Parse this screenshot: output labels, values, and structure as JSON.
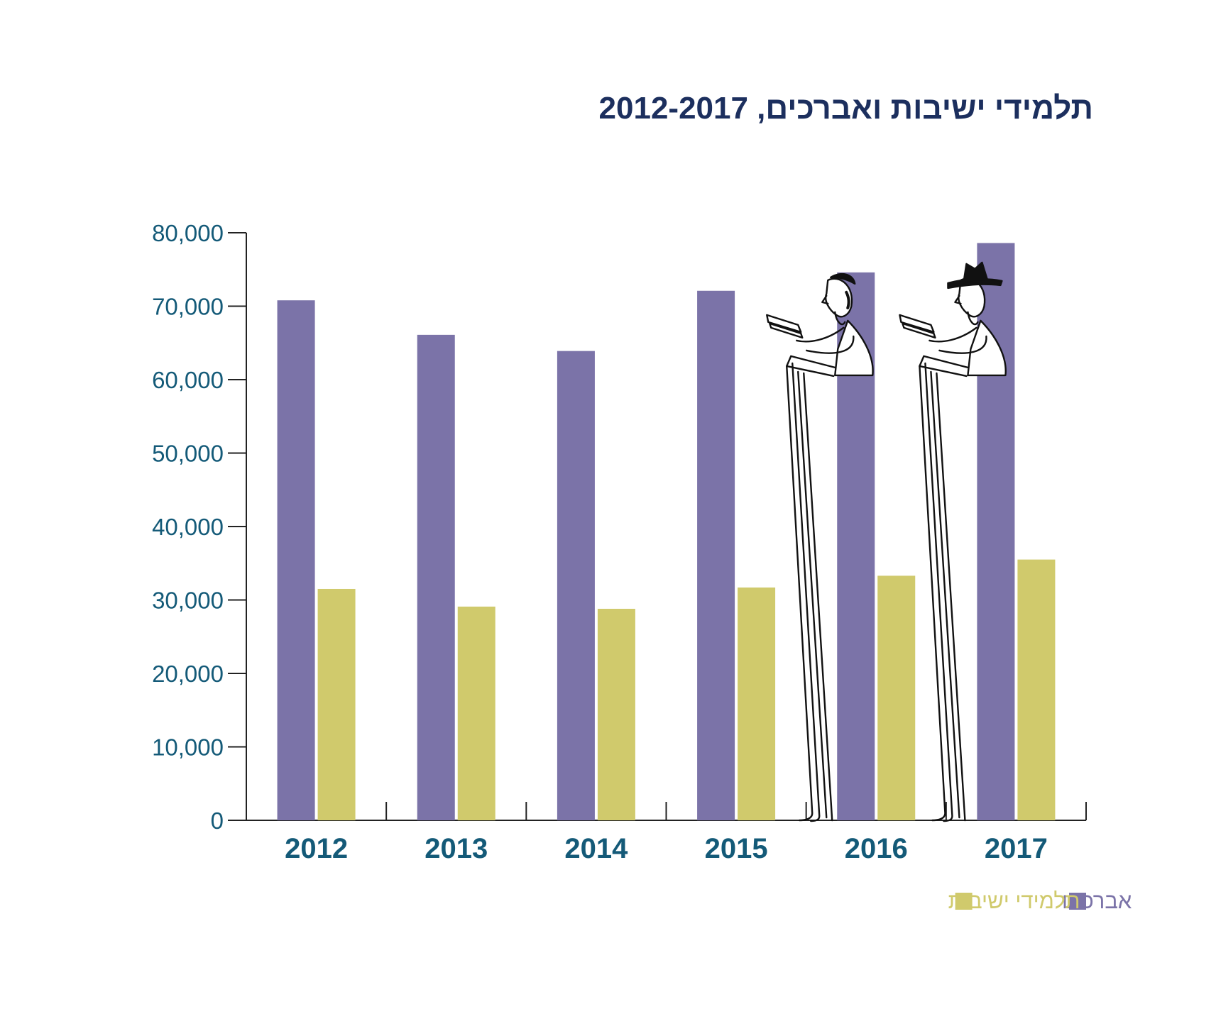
{
  "colors": {
    "title": "#1c2f5e",
    "axis_text": "#145a78",
    "avrechim": "#7b73a8",
    "yeshiva": "#d0ca6c"
  },
  "chart_data": {
    "type": "bar",
    "title": "תלמידי ישיבות ואברכים, 2012-2017",
    "categories": [
      "2012",
      "2013",
      "2014",
      "2015",
      "2016",
      "2017"
    ],
    "series": [
      {
        "name": "אברכים",
        "color": "#7b73a8",
        "values": [
          70800,
          66100,
          63900,
          72100,
          74600,
          78600
        ]
      },
      {
        "name": "תלמידי ישיבות",
        "color": "#d0ca6c",
        "values": [
          31500,
          29100,
          28800,
          31700,
          33300,
          35500
        ]
      }
    ],
    "ylim": [
      0,
      80000
    ],
    "yticks": [
      0,
      10000,
      20000,
      30000,
      40000,
      50000,
      60000,
      70000,
      80000
    ],
    "ytick_labels": [
      "0",
      "10,000",
      "20,000",
      "30,000",
      "40,000",
      "50,000",
      "60,000",
      "70,000",
      "80,000"
    ],
    "grid": false,
    "legend_position": "bottom-right",
    "decorations": [
      "illustration-man-reading-kippah",
      "illustration-man-reading-hat"
    ]
  }
}
